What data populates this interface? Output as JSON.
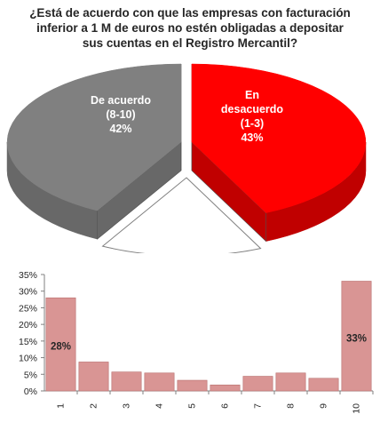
{
  "question_lines": [
    "¿Está de acuerdo con que las empresas con facturación",
    "inferior a 1  M de euros no estén obligadas a depositar",
    "sus cuentas en el Registro Mercantil?"
  ],
  "colors": {
    "agree_top": "#808080",
    "agree_side": "#686868",
    "disagree_top": "#ff0000",
    "disagree_side": "#c00000",
    "bar_fill": "#d99594",
    "bar_stroke": "#b96f6e",
    "axis": "#808080",
    "grid": "#d9d9d9",
    "label_white": "#ffffff",
    "label_dark": "#262626"
  },
  "chart_data": [
    {
      "type": "pie",
      "title": "¿Está de acuerdo con que las empresas con facturación inferior a 1  M de euros no estén obligadas a depositar sus cuentas en el Registro Mercantil?",
      "style": "3d-exploded",
      "slices": [
        {
          "label_lines": [
            "De acuerdo",
            "(8-10)",
            "42%"
          ],
          "value": 42
        },
        {
          "label_lines": [
            "En",
            "desacuerdo",
            "(1-3)",
            "43%"
          ],
          "value": 43
        },
        {
          "label_lines": [],
          "value": 15
        }
      ]
    },
    {
      "type": "bar",
      "categories": [
        "1",
        "2",
        "3",
        "4",
        "5",
        "6",
        "7",
        "8",
        "9",
        "10"
      ],
      "values": [
        28,
        8.7,
        5.7,
        5.4,
        3.2,
        1.8,
        4.4,
        5.4,
        3.8,
        33
      ],
      "data_labels": {
        "0": "28%",
        "9": "33%"
      },
      "y_ticks": [
        "0%",
        "5%",
        "10%",
        "15%",
        "20%",
        "25%",
        "30%",
        "35%"
      ],
      "ylim": [
        0,
        35
      ],
      "grid": false
    }
  ]
}
